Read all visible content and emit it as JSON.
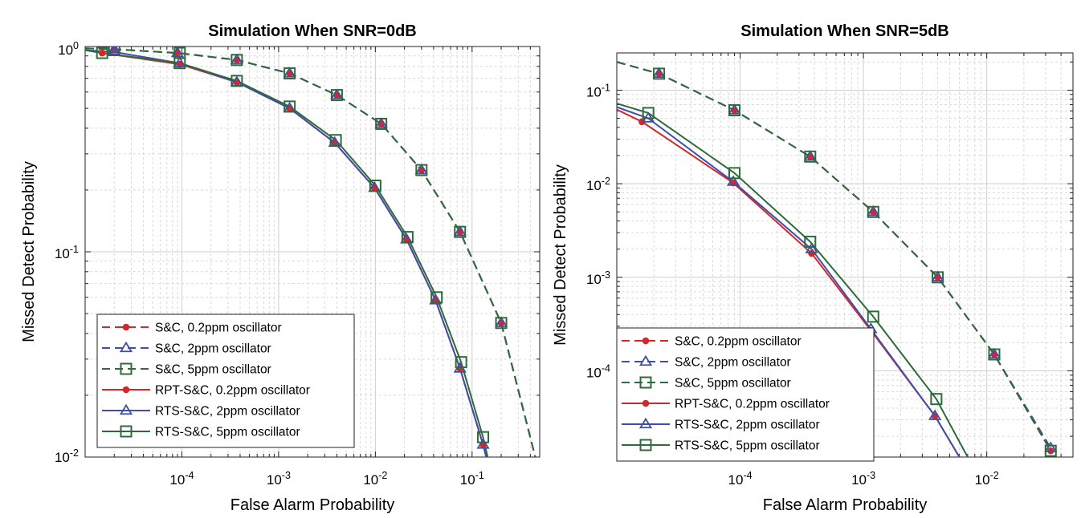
{
  "chart_data": [
    {
      "type": "line",
      "title": "Simulation When SNR=0dB",
      "xlabel": "False Alarm Probability",
      "ylabel": "Missed Detect Probability",
      "xscale": "log",
      "yscale": "log",
      "xlim": [
        1e-05,
        0.5
      ],
      "ylim": [
        0.01,
        1.0
      ],
      "x_ticks": [
        "10-4",
        "10-3",
        "10-2",
        "10-1"
      ],
      "y_ticks": [
        "10-2",
        "10-1",
        "100"
      ],
      "grid": "on",
      "legend_position": "bottom-left",
      "series": [
        {
          "name": "S&C, 0.2ppm oscillator",
          "color": "#d62728",
          "linestyle": "dashed",
          "marker": "dot",
          "x": [
            1e-05,
            2e-05,
            9e-05,
            0.00037,
            0.0013,
            0.004,
            0.0115,
            0.03,
            0.075,
            0.2,
            0.45
          ],
          "y": [
            0.98,
            0.97,
            0.93,
            0.86,
            0.74,
            0.58,
            0.42,
            0.25,
            0.125,
            0.045,
            0.01
          ]
        },
        {
          "name": "S&C, 2ppm oscillator",
          "color": "#3f4fa8",
          "linestyle": "dashed",
          "marker": "triangle",
          "x": [
            1e-05,
            2e-05,
            9e-05,
            0.00037,
            0.0013,
            0.004,
            0.0115,
            0.03,
            0.075,
            0.2,
            0.45
          ],
          "y": [
            0.98,
            0.97,
            0.93,
            0.86,
            0.74,
            0.58,
            0.42,
            0.25,
            0.125,
            0.045,
            0.01
          ]
        },
        {
          "name": "S&C, 5ppm oscillator",
          "color": "#2e6b3a",
          "linestyle": "dashed",
          "marker": "square",
          "x": [
            1e-05,
            2e-05,
            9.5e-05,
            0.00037,
            0.0013,
            0.004,
            0.0115,
            0.03,
            0.075,
            0.2,
            0.45
          ],
          "y": [
            0.98,
            0.97,
            0.93,
            0.86,
            0.74,
            0.58,
            0.42,
            0.25,
            0.125,
            0.045,
            0.01
          ]
        },
        {
          "name": "RPT-S&C, 0.2ppm oscillator",
          "color": "#d62728",
          "linestyle": "solid",
          "marker": "dot",
          "x": [
            1e-05,
            1.5e-05,
            9.5e-05,
            0.00037,
            0.0013,
            0.0038,
            0.0098,
            0.021,
            0.042,
            0.075,
            0.13,
            0.14
          ],
          "y": [
            0.96,
            0.93,
            0.82,
            0.67,
            0.5,
            0.34,
            0.205,
            0.115,
            0.058,
            0.027,
            0.0115,
            0.01
          ]
        },
        {
          "name": "RTS-S&C, 2ppm oscillator",
          "color": "#3f4fa8",
          "linestyle": "solid",
          "marker": "triangle",
          "x": [
            1e-05,
            2e-05,
            9.5e-05,
            0.00037,
            0.0013,
            0.0038,
            0.0098,
            0.021,
            0.042,
            0.075,
            0.13,
            0.14
          ],
          "y": [
            0.96,
            0.94,
            0.83,
            0.67,
            0.5,
            0.34,
            0.205,
            0.115,
            0.058,
            0.027,
            0.0115,
            0.01
          ]
        },
        {
          "name": "RTS-S&C, 5ppm oscillator",
          "color": "#2e6b3a",
          "linestyle": "solid",
          "marker": "square",
          "x": [
            1e-05,
            1.5e-05,
            9.5e-05,
            0.00037,
            0.0013,
            0.0039,
            0.01,
            0.0215,
            0.043,
            0.077,
            0.13,
            0.145
          ],
          "y": [
            0.96,
            0.93,
            0.83,
            0.68,
            0.51,
            0.35,
            0.21,
            0.118,
            0.06,
            0.029,
            0.0125,
            0.01
          ]
        }
      ]
    },
    {
      "type": "line",
      "title": "Simulation When SNR=5dB",
      "xlabel": "False Alarm Probability",
      "ylabel": "Missed Detect Probability",
      "xscale": "log",
      "yscale": "log",
      "xlim": [
        1e-05,
        0.05
      ],
      "ylim": [
        1.2e-05,
        0.25
      ],
      "x_ticks": [
        "10-4",
        "10-3",
        "10-2"
      ],
      "y_ticks": [
        "10-4",
        "10-3",
        "10-2",
        "10-1"
      ],
      "grid": "on",
      "legend_position": "bottom-left",
      "series": [
        {
          "name": "S&C, 0.2ppm oscillator",
          "color": "#d62728",
          "linestyle": "dashed",
          "marker": "dot",
          "x": [
            1e-05,
            2.2e-05,
            9e-05,
            0.00037,
            0.0012,
            0.004,
            0.0115,
            0.033
          ],
          "y": [
            0.2,
            0.15,
            0.061,
            0.0195,
            0.005,
            0.001,
            0.00015,
            1.4e-05
          ]
        },
        {
          "name": "S&C, 2ppm oscillator",
          "color": "#3f4fa8",
          "linestyle": "dashed",
          "marker": "triangle",
          "x": [
            1e-05,
            2.2e-05,
            9e-05,
            0.00037,
            0.0012,
            0.004,
            0.0115,
            0.033
          ],
          "y": [
            0.2,
            0.15,
            0.061,
            0.0195,
            0.005,
            0.001,
            0.00015,
            1.5e-05
          ]
        },
        {
          "name": "S&C, 5ppm oscillator",
          "color": "#2e6b3a",
          "linestyle": "dashed",
          "marker": "square",
          "x": [
            1e-05,
            2.2e-05,
            9e-05,
            0.00037,
            0.0012,
            0.004,
            0.0115,
            0.033
          ],
          "y": [
            0.2,
            0.15,
            0.061,
            0.0195,
            0.005,
            0.001,
            0.00015,
            1.4e-05
          ]
        },
        {
          "name": "RPT-S&C, 0.2ppm oscillator",
          "color": "#d62728",
          "linestyle": "solid",
          "marker": "dot",
          "x": [
            1e-05,
            1.6e-05,
            8.8e-05,
            0.00038,
            0.00115,
            0.0038,
            0.006
          ],
          "y": [
            0.062,
            0.046,
            0.0102,
            0.0018,
            0.00027,
            3.3e-05,
            1.2e-05
          ]
        },
        {
          "name": "RTS-S&C, 2ppm oscillator",
          "color": "#3f4fa8",
          "linestyle": "solid",
          "marker": "triangle",
          "x": [
            1e-05,
            1.8e-05,
            8.8e-05,
            0.00038,
            0.00115,
            0.0038,
            0.006
          ],
          "y": [
            0.066,
            0.05,
            0.0105,
            0.002,
            0.00028,
            3.3e-05,
            1.2e-05
          ]
        },
        {
          "name": "RTS-S&C, 5ppm oscillator",
          "color": "#2e6b3a",
          "linestyle": "solid",
          "marker": "square",
          "x": [
            1e-05,
            1.8e-05,
            9e-05,
            0.00037,
            0.0012,
            0.0039,
            0.007
          ],
          "y": [
            0.072,
            0.057,
            0.013,
            0.0024,
            0.00038,
            5e-05,
            1.2e-05
          ]
        }
      ]
    }
  ]
}
